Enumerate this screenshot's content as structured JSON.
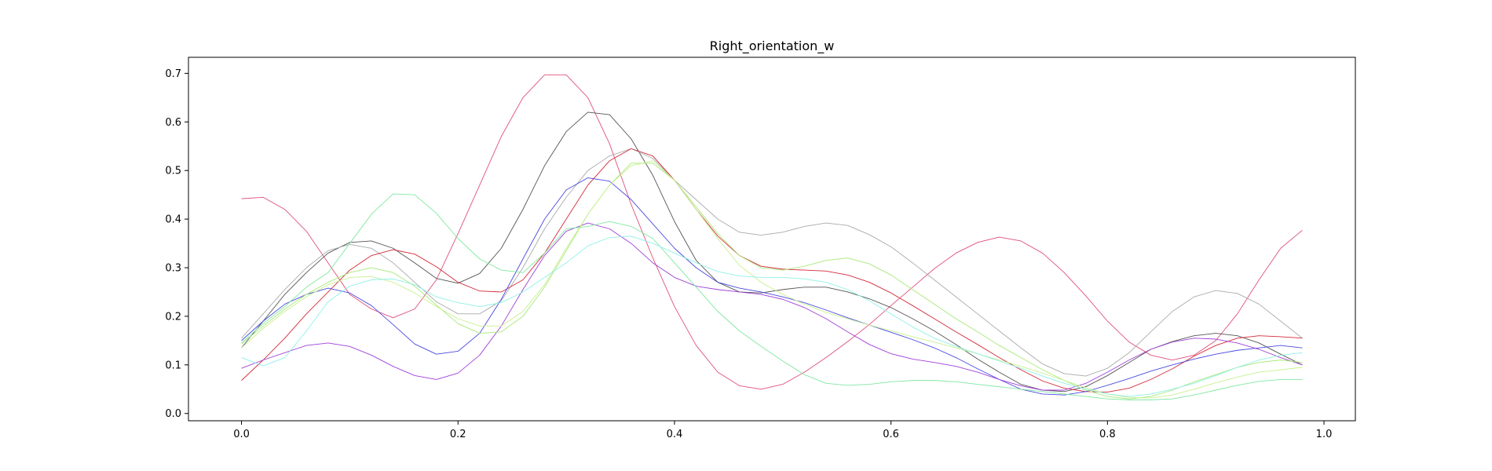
{
  "chart_data": {
    "type": "line",
    "title": "Right_orientation_w",
    "xlabel": "",
    "ylabel": "",
    "xlim": [
      -0.049,
      1.029
    ],
    "ylim": [
      -0.015,
      0.733
    ],
    "grid": false,
    "legend": "none",
    "x_ticks": [
      0.0,
      0.2,
      0.4,
      0.6,
      0.8,
      1.0
    ],
    "x_tick_labels": [
      "0.0",
      "0.2",
      "0.4",
      "0.6",
      "0.8",
      "1.0"
    ],
    "y_ticks": [
      0.0,
      0.1,
      0.2,
      0.3,
      0.4,
      0.5,
      0.6,
      0.7
    ],
    "y_tick_labels": [
      "0.0",
      "0.1",
      "0.2",
      "0.3",
      "0.4",
      "0.5",
      "0.6",
      "0.7"
    ],
    "x": [
      0.0,
      0.02,
      0.04,
      0.06,
      0.08,
      0.1,
      0.12,
      0.14,
      0.16,
      0.18,
      0.2,
      0.22,
      0.24,
      0.26,
      0.28,
      0.3,
      0.32,
      0.34,
      0.36,
      0.38,
      0.4,
      0.42,
      0.44,
      0.46,
      0.48,
      0.5,
      0.52,
      0.54,
      0.56,
      0.58,
      0.6,
      0.62,
      0.64,
      0.66,
      0.68,
      0.7,
      0.72,
      0.74,
      0.76,
      0.78,
      0.8,
      0.82,
      0.84,
      0.86,
      0.88,
      0.9,
      0.92,
      0.94,
      0.96,
      0.98
    ],
    "series": [
      {
        "color": "#e0507a",
        "values": [
          0.442,
          0.445,
          0.42,
          0.375,
          0.31,
          0.245,
          0.215,
          0.197,
          0.215,
          0.275,
          0.37,
          0.47,
          0.57,
          0.65,
          0.697,
          0.697,
          0.65,
          0.555,
          0.43,
          0.32,
          0.22,
          0.14,
          0.085,
          0.057,
          0.05,
          0.06,
          0.085,
          0.115,
          0.148,
          0.183,
          0.222,
          0.26,
          0.298,
          0.33,
          0.352,
          0.363,
          0.355,
          0.33,
          0.29,
          0.242,
          0.19,
          0.147,
          0.12,
          0.11,
          0.12,
          0.15,
          0.205,
          0.275,
          0.34,
          0.377
        ]
      },
      {
        "color": "#555555",
        "values": [
          0.135,
          0.19,
          0.245,
          0.29,
          0.33,
          0.352,
          0.355,
          0.34,
          0.31,
          0.278,
          0.268,
          0.288,
          0.34,
          0.42,
          0.51,
          0.58,
          0.62,
          0.615,
          0.565,
          0.49,
          0.395,
          0.315,
          0.27,
          0.25,
          0.248,
          0.255,
          0.26,
          0.26,
          0.25,
          0.236,
          0.218,
          0.195,
          0.17,
          0.142,
          0.112,
          0.085,
          0.06,
          0.048,
          0.045,
          0.055,
          0.078,
          0.105,
          0.132,
          0.148,
          0.16,
          0.165,
          0.16,
          0.145,
          0.122,
          0.1
        ]
      },
      {
        "color": "#aaaaaa",
        "values": [
          0.155,
          0.205,
          0.255,
          0.3,
          0.335,
          0.348,
          0.34,
          0.31,
          0.27,
          0.23,
          0.205,
          0.205,
          0.232,
          0.3,
          0.38,
          0.445,
          0.5,
          0.53,
          0.545,
          0.525,
          0.48,
          0.44,
          0.4,
          0.373,
          0.367,
          0.373,
          0.385,
          0.392,
          0.387,
          0.368,
          0.343,
          0.31,
          0.275,
          0.24,
          0.205,
          0.17,
          0.135,
          0.102,
          0.082,
          0.077,
          0.093,
          0.125,
          0.168,
          0.21,
          0.24,
          0.253,
          0.247,
          0.225,
          0.19,
          0.155
        ]
      },
      {
        "color": "#d42a3a",
        "values": [
          0.068,
          0.11,
          0.155,
          0.205,
          0.25,
          0.295,
          0.325,
          0.337,
          0.328,
          0.302,
          0.27,
          0.252,
          0.25,
          0.275,
          0.33,
          0.4,
          0.47,
          0.52,
          0.545,
          0.53,
          0.48,
          0.42,
          0.365,
          0.325,
          0.303,
          0.297,
          0.295,
          0.293,
          0.285,
          0.27,
          0.248,
          0.222,
          0.195,
          0.168,
          0.142,
          0.115,
          0.09,
          0.067,
          0.052,
          0.045,
          0.044,
          0.052,
          0.07,
          0.092,
          0.118,
          0.14,
          0.155,
          0.16,
          0.158,
          0.155
        ]
      },
      {
        "color": "#4a4ae0",
        "values": [
          0.15,
          0.19,
          0.225,
          0.245,
          0.258,
          0.248,
          0.222,
          0.183,
          0.143,
          0.122,
          0.128,
          0.165,
          0.235,
          0.318,
          0.4,
          0.46,
          0.485,
          0.478,
          0.44,
          0.39,
          0.34,
          0.3,
          0.27,
          0.258,
          0.25,
          0.24,
          0.228,
          0.213,
          0.197,
          0.182,
          0.167,
          0.152,
          0.135,
          0.115,
          0.092,
          0.07,
          0.05,
          0.04,
          0.038,
          0.045,
          0.058,
          0.072,
          0.087,
          0.1,
          0.112,
          0.122,
          0.13,
          0.135,
          0.14,
          0.135
        ]
      },
      {
        "color": "#a040d8",
        "values": [
          0.093,
          0.11,
          0.125,
          0.14,
          0.145,
          0.138,
          0.12,
          0.097,
          0.078,
          0.07,
          0.083,
          0.12,
          0.18,
          0.255,
          0.325,
          0.375,
          0.392,
          0.38,
          0.35,
          0.31,
          0.28,
          0.262,
          0.255,
          0.25,
          0.245,
          0.235,
          0.218,
          0.195,
          0.168,
          0.142,
          0.123,
          0.112,
          0.105,
          0.097,
          0.085,
          0.07,
          0.057,
          0.048,
          0.048,
          0.062,
          0.085,
          0.11,
          0.132,
          0.147,
          0.155,
          0.153,
          0.145,
          0.132,
          0.115,
          0.1
        ]
      },
      {
        "color": "#a8e878",
        "values": [
          0.143,
          0.18,
          0.215,
          0.245,
          0.27,
          0.29,
          0.3,
          0.29,
          0.262,
          0.223,
          0.185,
          0.165,
          0.168,
          0.2,
          0.26,
          0.335,
          0.41,
          0.47,
          0.515,
          0.515,
          0.48,
          0.425,
          0.37,
          0.325,
          0.3,
          0.295,
          0.303,
          0.315,
          0.32,
          0.308,
          0.285,
          0.255,
          0.225,
          0.195,
          0.168,
          0.14,
          0.115,
          0.09,
          0.068,
          0.048,
          0.035,
          0.03,
          0.035,
          0.048,
          0.065,
          0.08,
          0.095,
          0.105,
          0.11,
          0.105
        ]
      },
      {
        "color": "#c8f090",
        "values": [
          0.135,
          0.175,
          0.21,
          0.24,
          0.265,
          0.28,
          0.282,
          0.27,
          0.248,
          0.22,
          0.195,
          0.18,
          0.18,
          0.21,
          0.265,
          0.34,
          0.41,
          0.47,
          0.51,
          0.52,
          0.48,
          0.42,
          0.36,
          0.305,
          0.27,
          0.245,
          0.225,
          0.208,
          0.195,
          0.182,
          0.17,
          0.158,
          0.147,
          0.135,
          0.123,
          0.11,
          0.097,
          0.083,
          0.068,
          0.053,
          0.04,
          0.033,
          0.032,
          0.038,
          0.05,
          0.063,
          0.075,
          0.085,
          0.09,
          0.095
        ]
      },
      {
        "color": "#80e8a0",
        "values": [
          0.145,
          0.185,
          0.22,
          0.26,
          0.29,
          0.35,
          0.41,
          0.452,
          0.45,
          0.412,
          0.36,
          0.318,
          0.295,
          0.29,
          0.33,
          0.38,
          0.385,
          0.395,
          0.385,
          0.36,
          0.31,
          0.26,
          0.21,
          0.17,
          0.138,
          0.108,
          0.08,
          0.062,
          0.058,
          0.06,
          0.065,
          0.068,
          0.068,
          0.065,
          0.06,
          0.055,
          0.05,
          0.045,
          0.04,
          0.035,
          0.03,
          0.028,
          0.028,
          0.03,
          0.038,
          0.048,
          0.058,
          0.066,
          0.07,
          0.07
        ]
      },
      {
        "color": "#90f0e8",
        "values": [
          0.115,
          0.098,
          0.115,
          0.17,
          0.23,
          0.262,
          0.275,
          0.277,
          0.265,
          0.24,
          0.228,
          0.22,
          0.228,
          0.25,
          0.28,
          0.31,
          0.345,
          0.362,
          0.365,
          0.35,
          0.33,
          0.31,
          0.292,
          0.283,
          0.28,
          0.28,
          0.277,
          0.27,
          0.255,
          0.232,
          0.205,
          0.178,
          0.155,
          0.138,
          0.123,
          0.108,
          0.093,
          0.077,
          0.062,
          0.05,
          0.04,
          0.035,
          0.04,
          0.05,
          0.062,
          0.078,
          0.095,
          0.11,
          0.12,
          0.125
        ]
      }
    ]
  }
}
